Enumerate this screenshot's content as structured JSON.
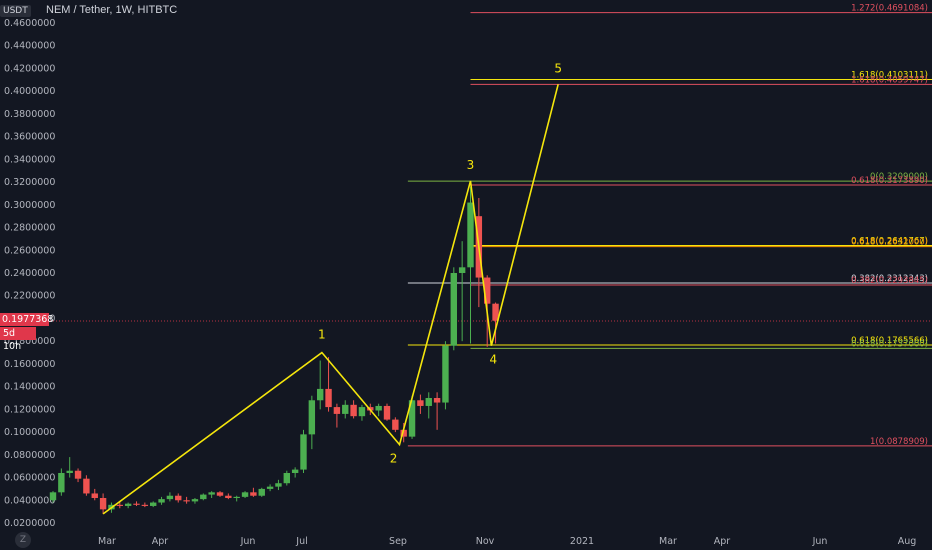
{
  "header": {
    "unit": "USDT",
    "title": "NEM / Tether, 1W, HITBTC"
  },
  "price_tag": {
    "value": "0.1977368",
    "countdown": "5d 10h"
  },
  "timezone_button": {
    "label": "Z"
  },
  "colors": {
    "background": "#131722",
    "up": "#26a69a",
    "up_fill": "#4caf50",
    "down": "#ef5350",
    "wave": "#f5e60c",
    "grid_axis_text": "#b2b5be"
  },
  "chart_data": {
    "type": "candlestick",
    "title": "NEM / Tether, 1W, HITBTC",
    "ylabel": "USDT",
    "ylim": [
      0.02,
      0.46
    ],
    "y_ticks": [
      "0.4600000",
      "0.4400000",
      "0.4200000",
      "0.4000000",
      "0.3800000",
      "0.3600000",
      "0.3400000",
      "0.3200000",
      "0.3000000",
      "0.2800000",
      "0.2600000",
      "0.2400000",
      "0.2200000",
      "0.2000000",
      "0.1800000",
      "0.1600000",
      "0.1400000",
      "0.1200000",
      "0.1000000",
      "0.0800000",
      "0.0600000",
      "0.0400000",
      "0.0200000"
    ],
    "x_ticks": [
      "Mar",
      "Apr",
      "Jun",
      "Jul",
      "Sep",
      "Nov",
      "2021",
      "Mar",
      "Apr",
      "Jun",
      "Aug"
    ],
    "candles": [
      {
        "o": 0.04,
        "h": 0.048,
        "l": 0.038,
        "c": 0.047
      },
      {
        "o": 0.047,
        "h": 0.068,
        "l": 0.044,
        "c": 0.064
      },
      {
        "o": 0.064,
        "h": 0.078,
        "l": 0.06,
        "c": 0.066
      },
      {
        "o": 0.066,
        "h": 0.068,
        "l": 0.056,
        "c": 0.059
      },
      {
        "o": 0.059,
        "h": 0.062,
        "l": 0.044,
        "c": 0.046
      },
      {
        "o": 0.046,
        "h": 0.05,
        "l": 0.04,
        "c": 0.042
      },
      {
        "o": 0.042,
        "h": 0.046,
        "l": 0.028,
        "c": 0.032
      },
      {
        "o": 0.032,
        "h": 0.038,
        "l": 0.029,
        "c": 0.036
      },
      {
        "o": 0.036,
        "h": 0.039,
        "l": 0.033,
        "c": 0.035
      },
      {
        "o": 0.035,
        "h": 0.038,
        "l": 0.033,
        "c": 0.037
      },
      {
        "o": 0.037,
        "h": 0.039,
        "l": 0.035,
        "c": 0.036
      },
      {
        "o": 0.036,
        "h": 0.038,
        "l": 0.034,
        "c": 0.035
      },
      {
        "o": 0.035,
        "h": 0.039,
        "l": 0.034,
        "c": 0.038
      },
      {
        "o": 0.038,
        "h": 0.043,
        "l": 0.036,
        "c": 0.041
      },
      {
        "o": 0.041,
        "h": 0.047,
        "l": 0.039,
        "c": 0.044
      },
      {
        "o": 0.044,
        "h": 0.046,
        "l": 0.038,
        "c": 0.04
      },
      {
        "o": 0.04,
        "h": 0.043,
        "l": 0.037,
        "c": 0.039
      },
      {
        "o": 0.039,
        "h": 0.042,
        "l": 0.037,
        "c": 0.041
      },
      {
        "o": 0.041,
        "h": 0.046,
        "l": 0.04,
        "c": 0.045
      },
      {
        "o": 0.045,
        "h": 0.048,
        "l": 0.042,
        "c": 0.047
      },
      {
        "o": 0.047,
        "h": 0.048,
        "l": 0.043,
        "c": 0.044
      },
      {
        "o": 0.044,
        "h": 0.046,
        "l": 0.041,
        "c": 0.042
      },
      {
        "o": 0.042,
        "h": 0.044,
        "l": 0.039,
        "c": 0.043
      },
      {
        "o": 0.043,
        "h": 0.048,
        "l": 0.042,
        "c": 0.047
      },
      {
        "o": 0.047,
        "h": 0.051,
        "l": 0.043,
        "c": 0.044
      },
      {
        "o": 0.044,
        "h": 0.051,
        "l": 0.043,
        "c": 0.05
      },
      {
        "o": 0.05,
        "h": 0.054,
        "l": 0.048,
        "c": 0.052
      },
      {
        "o": 0.052,
        "h": 0.058,
        "l": 0.049,
        "c": 0.055
      },
      {
        "o": 0.055,
        "h": 0.066,
        "l": 0.053,
        "c": 0.064
      },
      {
        "o": 0.064,
        "h": 0.069,
        "l": 0.06,
        "c": 0.067
      },
      {
        "o": 0.067,
        "h": 0.102,
        "l": 0.064,
        "c": 0.098
      },
      {
        "o": 0.098,
        "h": 0.132,
        "l": 0.085,
        "c": 0.128
      },
      {
        "o": 0.128,
        "h": 0.163,
        "l": 0.12,
        "c": 0.138
      },
      {
        "o": 0.138,
        "h": 0.166,
        "l": 0.118,
        "c": 0.122
      },
      {
        "o": 0.122,
        "h": 0.125,
        "l": 0.104,
        "c": 0.116
      },
      {
        "o": 0.116,
        "h": 0.128,
        "l": 0.112,
        "c": 0.124
      },
      {
        "o": 0.124,
        "h": 0.128,
        "l": 0.112,
        "c": 0.114
      },
      {
        "o": 0.114,
        "h": 0.124,
        "l": 0.11,
        "c": 0.122
      },
      {
        "o": 0.122,
        "h": 0.125,
        "l": 0.115,
        "c": 0.119
      },
      {
        "o": 0.119,
        "h": 0.125,
        "l": 0.114,
        "c": 0.123
      },
      {
        "o": 0.123,
        "h": 0.125,
        "l": 0.11,
        "c": 0.111
      },
      {
        "o": 0.111,
        "h": 0.113,
        "l": 0.1,
        "c": 0.102
      },
      {
        "o": 0.102,
        "h": 0.108,
        "l": 0.091,
        "c": 0.096
      },
      {
        "o": 0.096,
        "h": 0.132,
        "l": 0.094,
        "c": 0.128
      },
      {
        "o": 0.128,
        "h": 0.133,
        "l": 0.116,
        "c": 0.123
      },
      {
        "o": 0.123,
        "h": 0.135,
        "l": 0.112,
        "c": 0.13
      },
      {
        "o": 0.13,
        "h": 0.135,
        "l": 0.102,
        "c": 0.126
      },
      {
        "o": 0.126,
        "h": 0.18,
        "l": 0.12,
        "c": 0.176
      },
      {
        "o": 0.176,
        "h": 0.245,
        "l": 0.172,
        "c": 0.24
      },
      {
        "o": 0.24,
        "h": 0.268,
        "l": 0.18,
        "c": 0.245
      },
      {
        "o": 0.245,
        "h": 0.316,
        "l": 0.178,
        "c": 0.302
      },
      {
        "o": 0.29,
        "h": 0.306,
        "l": 0.21,
        "c": 0.236
      },
      {
        "o": 0.236,
        "h": 0.238,
        "l": 0.175,
        "c": 0.213
      },
      {
        "o": 0.213,
        "h": 0.214,
        "l": 0.178,
        "c": 0.198
      }
    ],
    "elliott_wave": [
      {
        "label": "",
        "candle": 6,
        "price": 0.028
      },
      {
        "label": "1",
        "candle": 32.2,
        "price": 0.17
      },
      {
        "label": "2",
        "candle": 41.5,
        "price": 0.089
      },
      {
        "label": "3",
        "candle": 50.0,
        "price": 0.321
      },
      {
        "label": "4",
        "candle": 52.5,
        "price": 0.176
      },
      {
        "label": "5",
        "candle": 60.5,
        "price": 0.406
      }
    ],
    "fib_levels": [
      {
        "label": "1.272(0.4691084)",
        "price": 0.4691,
        "color": "#e0505f",
        "x_start_candle": 50.0
      },
      {
        "label": "1.618(0.4103111)",
        "price": 0.4103,
        "color": "#f5e60c",
        "x_start_candle": 50.0
      },
      {
        "label": "1.618(0.4059747)",
        "price": 0.406,
        "color": "#e0505f",
        "x_start_candle": 50.0
      },
      {
        "label": "0(0.3209000)",
        "price": 0.3209,
        "color": "#7cb342",
        "x_start_candle": 42.5
      },
      {
        "label": "0.618(0.3173890)",
        "price": 0.3174,
        "color": "#e0505f",
        "x_start_candle": 50.0
      },
      {
        "label": "0.618(0.2641767)",
        "price": 0.2642,
        "color": "#f5e60c",
        "x_start_candle": 50.0
      },
      {
        "label": "0.618(0.2632000)",
        "price": 0.2632,
        "color": "#ff9800",
        "x_start_candle": 50.0
      },
      {
        "label": "0.382(0.2312343)",
        "price": 0.2312,
        "color": "#d1d4dc",
        "x_start_candle": 42.5
      },
      {
        "label": "0.382(0.2293845)",
        "price": 0.2294,
        "color": "#e0505f",
        "x_start_candle": 50.0
      },
      {
        "label": "0.618(0.1765566)",
        "price": 0.1766,
        "color": "#f5e60c",
        "x_start_candle": 42.5
      },
      {
        "label": "0.618(0.1737000)",
        "price": 0.1737,
        "color": "#7cb342",
        "x_start_candle": 50.0
      },
      {
        "label": "1(0.0878909)",
        "price": 0.0879,
        "color": "#e0505f",
        "x_start_candle": 42.5
      }
    ],
    "last_price": 0.1977368
  }
}
